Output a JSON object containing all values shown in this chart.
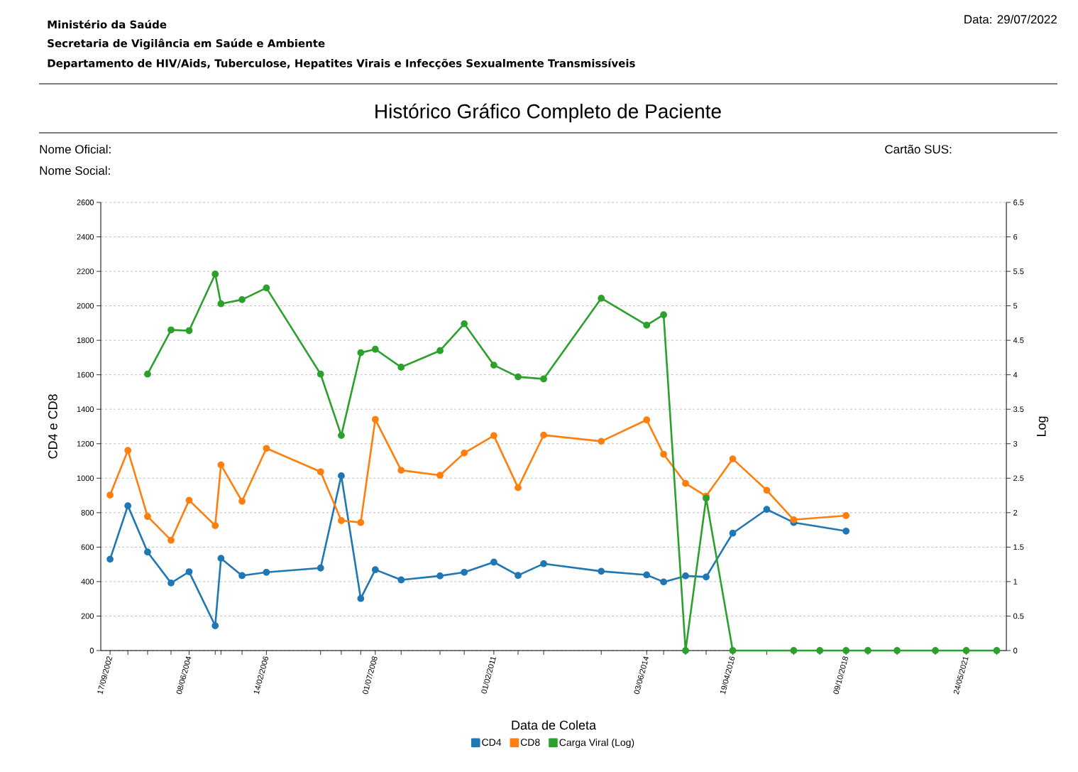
{
  "chart_data": {
    "type": "line",
    "title": "Histórico Gráfico Completo de Paciente",
    "annotations": [
      "Ministério da Saúde",
      "Secretaria de Vigilância em Saúde e Ambiente",
      "Departamento de HIV/Aids, Tuberculose, Hepatites Virais e Infecções Sexualmente Transmissíveis",
      "Data: 29/07/2022",
      "Nome Oficial:",
      "Cartão SUS:",
      "Nome Social:"
    ],
    "xlabel": "Data de Coleta",
    "ylabel": "CD4 e CD8",
    "y2label": "Log",
    "x": [
      "2002-09-17",
      "2003-02-06",
      "2003-07-13",
      "2004-01-16",
      "2004-06-08",
      "2005-01-02",
      "2005-02-17",
      "2005-08-04",
      "2006-02-14",
      "2007-04-22",
      "2007-10-04",
      "2008-03-07",
      "2008-07-01",
      "2009-01-23",
      "2009-11-29",
      "2010-06-10",
      "2011-02-01",
      "2011-08-13",
      "2012-03-04",
      "2013-06-06",
      "2014-06-03",
      "2014-10-16",
      "2015-04-09",
      "2015-09-20",
      "2016-04-19",
      "2017-01-15",
      "2017-08-18",
      "2018-03-14",
      "2018-10-09",
      "2019-04-01",
      "2019-11-20",
      "2020-09-20",
      "2021-05-24",
      "2022-01-22"
    ],
    "series": [
      {
        "name": "CD4",
        "color": "#1f77b4",
        "values": [
          530,
          840,
          572,
          392,
          457,
          144,
          535,
          435,
          454,
          479,
          1014,
          302,
          469,
          410,
          433,
          454,
          513,
          436,
          504,
          460,
          439,
          398,
          433,
          427,
          681,
          819,
          743,
          null,
          693,
          null,
          null,
          null,
          null,
          null
        ]
      },
      {
        "name": "CD8",
        "color": "#ff7f0e",
        "values": [
          902,
          1161,
          778,
          640,
          872,
          725,
          1077,
          866,
          1173,
          1037,
          754,
          743,
          1341,
          1046,
          1017,
          1146,
          1247,
          945,
          1250,
          1214,
          1338,
          1139,
          970,
          896,
          1112,
          930,
          759,
          null,
          783,
          null,
          null,
          null,
          null,
          null
        ]
      },
      {
        "name": "Carga Viral (Log)",
        "color": "#2ca02c",
        "axis": "y2",
        "values": [
          null,
          null,
          4.01,
          4.65,
          4.64,
          5.46,
          5.03,
          5.09,
          5.26,
          4.01,
          3.12,
          4.32,
          4.37,
          4.11,
          4.35,
          4.74,
          4.14,
          3.97,
          3.94,
          5.11,
          4.72,
          4.87,
          0,
          2.21,
          0,
          null,
          0,
          0,
          0,
          0,
          0,
          0,
          0,
          0
        ]
      }
    ],
    "xlim": [
      "2002-07-05",
      "2022-04-09"
    ],
    "xticks": [
      {
        "value": "2002-09-17",
        "label": "17/09/2002"
      },
      {
        "value": "2003-02-06",
        "label": null
      },
      {
        "value": "2003-07-13",
        "label": null
      },
      {
        "value": "2004-01-16",
        "label": null
      },
      {
        "value": "2004-06-08",
        "label": "08/06/2004"
      },
      {
        "value": "2005-01-02",
        "label": null
      },
      {
        "value": "2005-02-17",
        "label": null
      },
      {
        "value": "2005-08-04",
        "label": null
      },
      {
        "value": "2006-02-14",
        "label": "14/02/2006"
      },
      {
        "value": "2007-04-22",
        "label": null
      },
      {
        "value": "2007-10-04",
        "label": null
      },
      {
        "value": "2008-03-07",
        "label": null
      },
      {
        "value": "2008-07-01",
        "label": "01/07/2008"
      },
      {
        "value": "2009-01-23",
        "label": null
      },
      {
        "value": "2009-11-29",
        "label": null
      },
      {
        "value": "2010-06-10",
        "label": null
      },
      {
        "value": "2011-02-01",
        "label": "01/02/2011"
      },
      {
        "value": "2011-08-13",
        "label": null
      },
      {
        "value": "2012-03-04",
        "label": null
      },
      {
        "value": "2013-06-06",
        "label": null
      },
      {
        "value": "2014-06-03",
        "label": "03/06/2014"
      },
      {
        "value": "2014-10-16",
        "label": null
      },
      {
        "value": "2015-04-09",
        "label": null
      },
      {
        "value": "2015-09-20",
        "label": null
      },
      {
        "value": "2016-04-19",
        "label": "19/04/2016"
      },
      {
        "value": "2017-01-15",
        "label": null
      },
      {
        "value": "2017-08-18",
        "label": null
      },
      {
        "value": "2018-03-14",
        "label": null
      },
      {
        "value": "2018-10-09",
        "label": "09/10/2018"
      },
      {
        "value": "2019-04-01",
        "label": null
      },
      {
        "value": "2019-11-20",
        "label": null
      },
      {
        "value": "2020-09-20",
        "label": null
      },
      {
        "value": "2021-05-24",
        "label": "24/05/2021"
      },
      {
        "value": "2022-01-22",
        "label": null
      }
    ],
    "ylim": [
      0,
      2600
    ],
    "yticks": [
      0,
      200,
      400,
      600,
      800,
      1000,
      1200,
      1400,
      1600,
      1800,
      2000,
      2200,
      2400,
      2600
    ],
    "y2lim": [
      0,
      6.5
    ],
    "y2ticks": [
      0,
      0.5,
      1,
      1.5,
      2,
      2.5,
      3,
      3.5,
      4,
      4.5,
      5,
      5.5,
      6,
      6.5
    ],
    "grid": "y",
    "legend": "bottom",
    "marker": "circle",
    "line_style": "solid"
  }
}
